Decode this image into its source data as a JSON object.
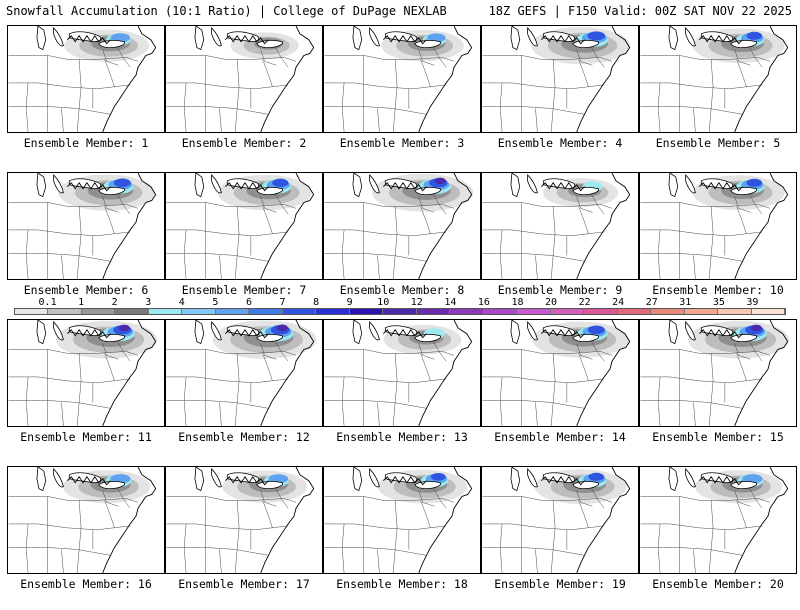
{
  "header": {
    "left": "Snowfall Accumulation (10:1 Ratio) | College of DuPage NEXLAB",
    "right": "18Z GEFS | F150 Valid: 00Z SAT NOV 22 2025"
  },
  "legend": {
    "labels": [
      "0.1",
      "1",
      "2",
      "3",
      "4",
      "5",
      "6",
      "7",
      "8",
      "9",
      "10",
      "12",
      "14",
      "16",
      "18",
      "20",
      "22",
      "24",
      "27",
      "31",
      "35",
      "39"
    ],
    "colors": [
      "#e6e6e6",
      "#c0c0c0",
      "#9a9a9a",
      "#7a7a7a",
      "#9ceaf0",
      "#84c6f5",
      "#5ea2f0",
      "#3f7ae8",
      "#2f55e0",
      "#2b2fd8",
      "#2a12b0",
      "#4a2aa8",
      "#6a2ab0",
      "#8a3ab8",
      "#a84ac6",
      "#c65ad0",
      "#d060b8",
      "#d85898",
      "#e06a7e",
      "#e88a7a",
      "#f0a690",
      "#f6c8b6",
      "#fbe2d6"
    ]
  },
  "panels": [
    {
      "label": "Ensemble Member: 1",
      "intensity": 0.55
    },
    {
      "label": "Ensemble Member: 2",
      "intensity": 0.2
    },
    {
      "label": "Ensemble Member: 3",
      "intensity": 0.5
    },
    {
      "label": "Ensemble Member: 4",
      "intensity": 0.85
    },
    {
      "label": "Ensemble Member: 5",
      "intensity": 0.7
    },
    {
      "label": "Ensemble Member: 6",
      "intensity": 0.8
    },
    {
      "label": "Ensemble Member: 7",
      "intensity": 0.75
    },
    {
      "label": "Ensemble Member: 8",
      "intensity": 0.9
    },
    {
      "label": "Ensemble Member: 9",
      "intensity": 0.35
    },
    {
      "label": "Ensemble Member: 10",
      "intensity": 0.7
    },
    {
      "label": "Ensemble Member: 11",
      "intensity": 0.9
    },
    {
      "label": "Ensemble Member: 12",
      "intensity": 0.95
    },
    {
      "label": "Ensemble Member: 13",
      "intensity": 0.4
    },
    {
      "label": "Ensemble Member: 14",
      "intensity": 0.8
    },
    {
      "label": "Ensemble Member: 15",
      "intensity": 0.9
    },
    {
      "label": "Ensemble Member: 16",
      "intensity": 0.6
    },
    {
      "label": "Ensemble Member: 17",
      "intensity": 0.55
    },
    {
      "label": "Ensemble Member: 18",
      "intensity": 0.65
    },
    {
      "label": "Ensemble Member: 19",
      "intensity": 0.7
    },
    {
      "label": "Ensemble Member: 20",
      "intensity": 0.6
    }
  ]
}
